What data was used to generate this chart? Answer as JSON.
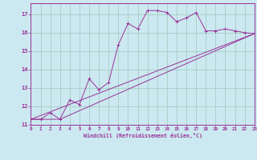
{
  "xlabel": "Windchill (Refroidissement éolien,°C)",
  "bg_color": "#cce8f0",
  "line_color": "#993399",
  "grid_color": "#99ccbb",
  "xlim": [
    0,
    23
  ],
  "ylim": [
    11,
    17.6
  ],
  "yticks": [
    11,
    12,
    13,
    14,
    15,
    16,
    17
  ],
  "xticks": [
    0,
    1,
    2,
    3,
    4,
    5,
    6,
    7,
    8,
    9,
    10,
    11,
    12,
    13,
    14,
    15,
    16,
    17,
    18,
    19,
    20,
    21,
    22,
    23
  ],
  "line1_x": [
    0,
    1,
    2,
    3,
    4,
    5,
    6,
    7,
    8,
    9,
    10,
    11,
    12,
    13,
    14,
    15,
    16,
    17,
    18,
    19,
    20,
    21,
    22,
    23
  ],
  "line1_y": [
    11.3,
    11.3,
    11.65,
    11.3,
    12.35,
    12.1,
    13.5,
    12.9,
    13.3,
    15.35,
    16.5,
    16.2,
    17.2,
    17.2,
    17.1,
    16.6,
    16.8,
    17.1,
    16.1,
    16.1,
    16.2,
    16.1,
    16.0,
    15.95
  ],
  "line2_x": [
    0,
    1,
    3,
    23
  ],
  "line2_y": [
    11.3,
    11.3,
    11.3,
    15.95
  ],
  "line3_x": [
    0,
    23
  ],
  "line3_y": [
    11.3,
    15.95
  ]
}
